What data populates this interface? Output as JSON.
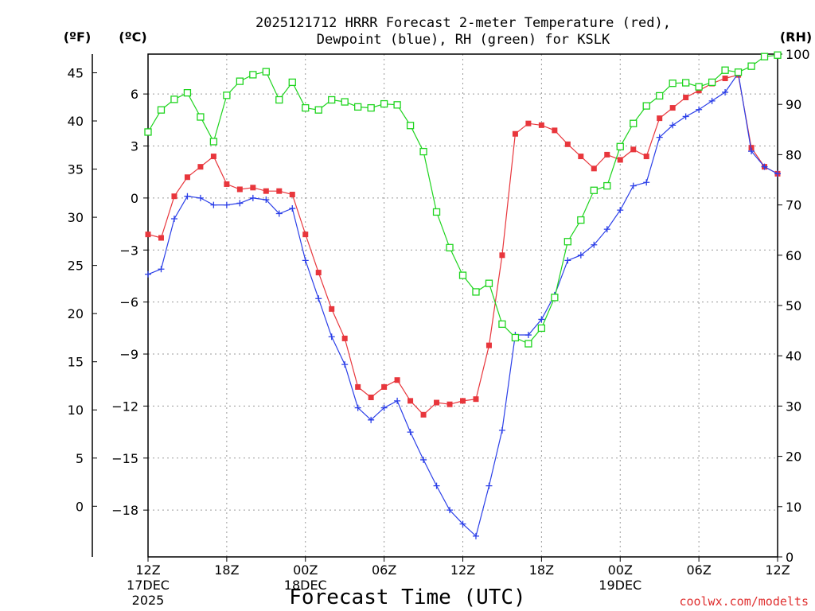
{
  "chart_data": {
    "type": "line",
    "title_line1": "2025121712 HRRR Forecast 2-meter Temperature (red),",
    "title_line2": "Dewpoint (blue), RH (green) for KSLK",
    "xlabel": "Forecast Time (UTC)",
    "credit": "coolwx.com/modelts",
    "unit_left_f": "(ºF)",
    "unit_left_c": "(ºC)",
    "unit_right": "(RH)",
    "x_range_hours": [
      0,
      48
    ],
    "ylim_c": [
      -20.7,
      8.3
    ],
    "ylim_rh": [
      0,
      100
    ],
    "ticks_c": [
      6,
      3,
      0,
      -3,
      -6,
      -9,
      -12,
      -15,
      -18
    ],
    "tick_labels_c": [
      "6",
      "3",
      "0",
      "−3",
      "−6",
      "−9",
      "−12",
      "−15",
      "−18"
    ],
    "ticks_f": [
      "45",
      "40",
      "35",
      "30",
      "25",
      "20",
      "15",
      "10",
      "5",
      "0"
    ],
    "ticks_f_values": [
      45,
      40,
      35,
      30,
      25,
      20,
      15,
      10,
      5,
      0
    ],
    "ticks_rh": [
      "100",
      "90",
      "80",
      "70",
      "60",
      "50",
      "40",
      "30",
      "20",
      "10",
      "0"
    ],
    "ticks_rh_values": [
      100,
      90,
      80,
      70,
      60,
      50,
      40,
      30,
      20,
      10,
      0
    ],
    "x_ticks": [
      {
        "hour": 0,
        "label": "12Z",
        "sub1": "17DEC",
        "sub2": "2025"
      },
      {
        "hour": 6,
        "label": "18Z",
        "sub1": "",
        "sub2": ""
      },
      {
        "hour": 12,
        "label": "00Z",
        "sub1": "18DEC",
        "sub2": ""
      },
      {
        "hour": 18,
        "label": "06Z",
        "sub1": "",
        "sub2": ""
      },
      {
        "hour": 24,
        "label": "12Z",
        "sub1": "",
        "sub2": ""
      },
      {
        "hour": 30,
        "label": "18Z",
        "sub1": "",
        "sub2": ""
      },
      {
        "hour": 36,
        "label": "00Z",
        "sub1": "19DEC",
        "sub2": ""
      },
      {
        "hour": 42,
        "label": "06Z",
        "sub1": "",
        "sub2": ""
      },
      {
        "hour": 48,
        "label": "12Z",
        "sub1": "",
        "sub2": ""
      }
    ],
    "hours": [
      0,
      1,
      2,
      3,
      4,
      5,
      6,
      7,
      8,
      9,
      10,
      11,
      12,
      13,
      14,
      15,
      16,
      17,
      18,
      19,
      20,
      21,
      22,
      23,
      24,
      25,
      26,
      27,
      28,
      29,
      30,
      31,
      32,
      33,
      34,
      35,
      36,
      37,
      38,
      39,
      40,
      41,
      42,
      43,
      44,
      45,
      46,
      47,
      48
    ],
    "series": [
      {
        "id": "temperature",
        "color": "#e8363c",
        "marker": "filled-square",
        "axis": "celsius",
        "values": [
          -2.1,
          -2.3,
          0.1,
          1.2,
          1.8,
          2.4,
          0.8,
          0.5,
          0.6,
          0.4,
          0.4,
          0.2,
          -2.1,
          -4.3,
          -6.4,
          -8.1,
          -10.9,
          -11.5,
          -10.9,
          -10.5,
          -11.7,
          -12.5,
          -11.8,
          -11.9,
          -11.7,
          -11.6,
          -8.5,
          -3.3,
          3.7,
          4.3,
          4.2,
          3.9,
          3.1,
          2.4,
          1.7,
          2.5,
          2.2,
          2.8,
          2.4,
          4.6,
          5.2,
          5.8,
          6.2,
          6.6,
          6.9,
          7.1,
          2.9,
          1.8,
          1.4
        ]
      },
      {
        "id": "dewpoint",
        "color": "#2b3fe8",
        "marker": "plus",
        "axis": "celsius",
        "values": [
          -4.4,
          -4.1,
          -1.2,
          0.1,
          0.0,
          -0.4,
          -0.4,
          -0.3,
          0.0,
          -0.1,
          -0.9,
          -0.6,
          -3.6,
          -5.8,
          -8.0,
          -9.6,
          -12.1,
          -12.8,
          -12.1,
          -11.7,
          -13.5,
          -15.1,
          -16.6,
          -18.0,
          -18.8,
          -19.5,
          -16.6,
          -13.4,
          -7.9,
          -7.9,
          -7.0,
          -5.6,
          -3.6,
          -3.3,
          -2.7,
          -1.8,
          -0.7,
          0.7,
          0.9,
          3.5,
          4.2,
          4.7,
          5.1,
          5.6,
          6.1,
          7.2,
          2.7,
          1.8,
          1.4
        ]
      },
      {
        "id": "rh",
        "color": "#1ed41e",
        "marker": "open-square",
        "axis": "rh",
        "values": [
          84.5,
          88.9,
          91.0,
          92.3,
          87.5,
          82.6,
          91.8,
          94.6,
          95.9,
          96.5,
          90.9,
          94.4,
          89.3,
          88.9,
          90.9,
          90.5,
          89.5,
          89.3,
          90.1,
          89.9,
          85.8,
          80.6,
          68.6,
          61.5,
          56.0,
          52.7,
          54.4,
          46.3,
          43.6,
          42.4,
          45.5,
          51.6,
          62.7,
          67.0,
          72.9,
          73.8,
          81.6,
          86.2,
          89.7,
          91.7,
          94.2,
          94.3,
          93.5,
          94.4,
          96.8,
          96.4,
          97.6,
          99.5,
          99.8
        ]
      }
    ]
  }
}
